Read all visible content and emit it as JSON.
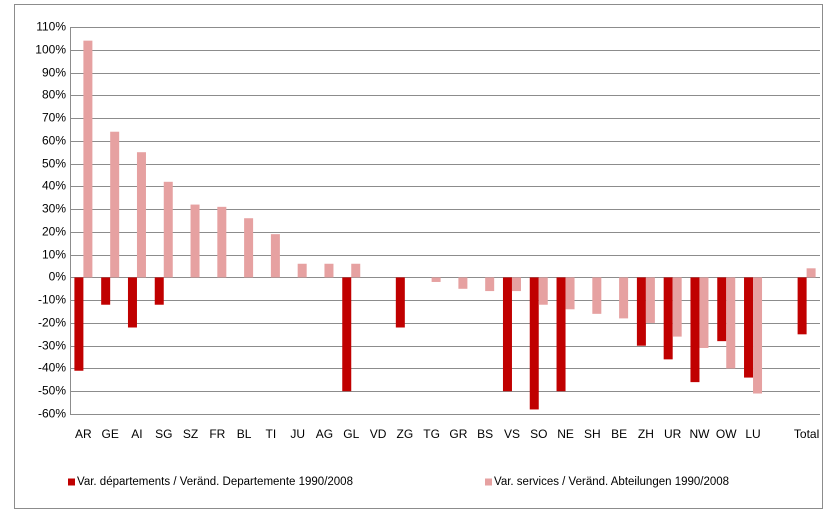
{
  "chart_data": {
    "type": "bar",
    "categories": [
      "AR",
      "GE",
      "AI",
      "SG",
      "SZ",
      "FR",
      "BL",
      "TI",
      "JU",
      "AG",
      "GL",
      "VD",
      "ZG",
      "TG",
      "GR",
      "BS",
      "VS",
      "SO",
      "NE",
      "SH",
      "BE",
      "ZH",
      "UR",
      "NW",
      "OW",
      "LU",
      null,
      "Total"
    ],
    "series": [
      {
        "name": "Var. départements / Veränd. Departemente 1990/2008",
        "color": "#c00000",
        "values": [
          -41,
          -12,
          -22,
          -12,
          0,
          0,
          0,
          0,
          0,
          0,
          -50,
          0,
          -22,
          0,
          0,
          0,
          -50,
          -58,
          -50,
          0,
          0,
          -30,
          -36,
          -46,
          -28,
          -44,
          null,
          -25
        ]
      },
      {
        "name": "Var. services / Veränd. Abteilungen 1990/2008",
        "color": "#e6a1a1",
        "values": [
          104,
          64,
          55,
          42,
          32,
          31,
          26,
          19,
          6,
          6,
          6,
          0,
          0,
          -2,
          -5,
          -6,
          -6,
          -12,
          -14,
          -16,
          -18,
          -20,
          -26,
          -31,
          -40,
          -51,
          null,
          4
        ]
      }
    ],
    "ylim": [
      -60,
      110
    ],
    "yticks": [
      {
        "value": -60,
        "label": "-60%"
      },
      {
        "value": -50,
        "label": "-50%"
      },
      {
        "value": -40,
        "label": "-40%"
      },
      {
        "value": -30,
        "label": "-30%"
      },
      {
        "value": -20,
        "label": "-20%"
      },
      {
        "value": -10,
        "label": "-10%"
      },
      {
        "value": 0,
        "label": "0%"
      },
      {
        "value": 10,
        "label": "10%"
      },
      {
        "value": 20,
        "label": "20%"
      },
      {
        "value": 30,
        "label": "30%"
      },
      {
        "value": 40,
        "label": "40%"
      },
      {
        "value": 50,
        "label": "50%"
      },
      {
        "value": 60,
        "label": "60%"
      },
      {
        "value": 70,
        "label": "70%"
      },
      {
        "value": 80,
        "label": "80%"
      },
      {
        "value": 90,
        "label": "90%"
      },
      {
        "value": 100,
        "label": "100%"
      },
      {
        "value": 110,
        "label": "110%"
      }
    ],
    "grid": true,
    "legend": "bottom"
  }
}
